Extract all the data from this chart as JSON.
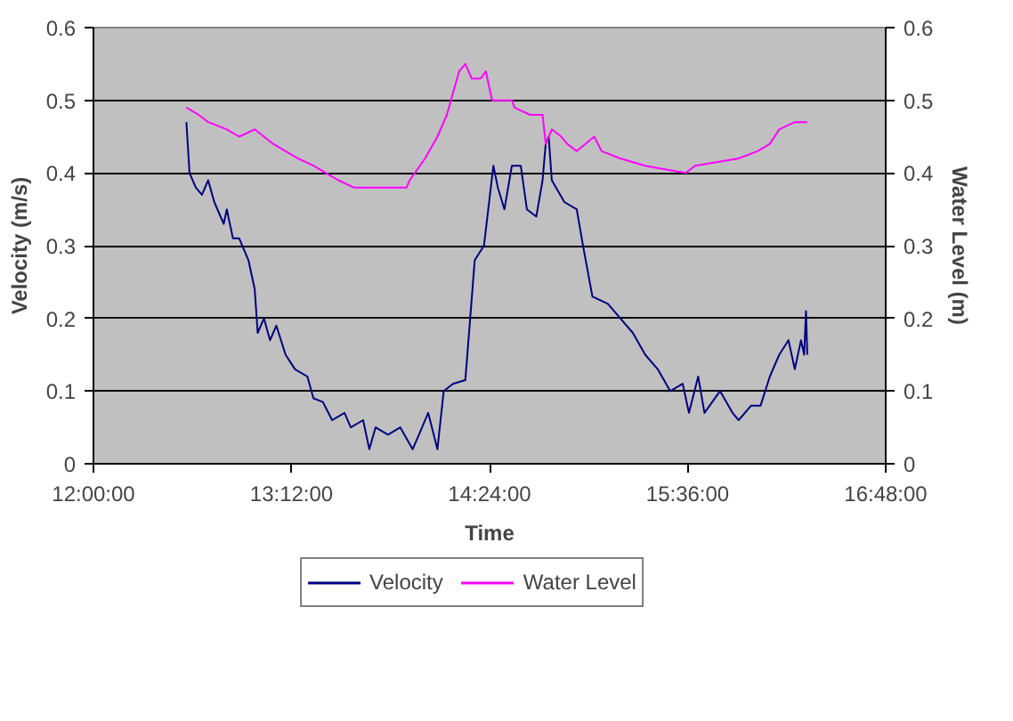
{
  "chart_data": {
    "type": "line",
    "xlabel": "Time",
    "ylabel": "Velocity (m/s)",
    "y2label": "Water Level (m)",
    "xlim": [
      12,
      16.8
    ],
    "xticks": [
      {
        "value": 12,
        "label": "12:00:00"
      },
      {
        "value": 13.2,
        "label": "13:12:00"
      },
      {
        "value": 14.4,
        "label": "14:24:00"
      },
      {
        "value": 15.6,
        "label": "15:36:00"
      },
      {
        "value": 16.8,
        "label": "16:48:00"
      }
    ],
    "ylim": [
      0,
      0.6
    ],
    "yticks": [
      0,
      0.1,
      0.2,
      0.3,
      0.4,
      0.5,
      0.6
    ],
    "y2lim": [
      0,
      0.6
    ],
    "y2ticks": [
      0,
      0.1,
      0.2,
      0.3,
      0.4,
      0.5,
      0.6
    ],
    "grid": "y",
    "legend": "bottom",
    "marker": "none",
    "line_style": "solid",
    "series": [
      {
        "name": "Velocity",
        "color": "#000080",
        "x": [
          12.563,
          12.582,
          12.62,
          12.657,
          12.695,
          12.732,
          12.789,
          12.808,
          12.845,
          12.883,
          12.939,
          12.977,
          12.995,
          13.033,
          13.07,
          13.108,
          13.164,
          13.221,
          13.296,
          13.333,
          13.39,
          13.446,
          13.521,
          13.559,
          13.634,
          13.671,
          13.709,
          13.784,
          13.859,
          13.934,
          13.972,
          14.028,
          14.084,
          14.122,
          14.178,
          14.253,
          14.31,
          14.366,
          14.423,
          14.45,
          14.49,
          14.535,
          14.589,
          14.626,
          14.683,
          14.721,
          14.74,
          14.758,
          14.777,
          14.853,
          14.928,
          14.966,
          15.023,
          15.117,
          15.192,
          15.268,
          15.343,
          15.419,
          15.494,
          15.57,
          15.608,
          15.664,
          15.702,
          15.796,
          15.872,
          15.909,
          15.985,
          16.042,
          16.098,
          16.155,
          16.211,
          16.249,
          16.287,
          16.306,
          16.317,
          16.325
        ],
        "values": [
          0.47,
          0.4,
          0.38,
          0.37,
          0.39,
          0.36,
          0.33,
          0.35,
          0.31,
          0.31,
          0.28,
          0.24,
          0.18,
          0.2,
          0.17,
          0.19,
          0.15,
          0.13,
          0.12,
          0.09,
          0.085,
          0.06,
          0.07,
          0.05,
          0.06,
          0.02,
          0.05,
          0.04,
          0.05,
          0.02,
          0.04,
          0.07,
          0.02,
          0.1,
          0.11,
          0.115,
          0.28,
          0.3,
          0.41,
          0.38,
          0.35,
          0.41,
          0.41,
          0.35,
          0.34,
          0.39,
          0.44,
          0.45,
          0.39,
          0.36,
          0.35,
          0.3,
          0.23,
          0.22,
          0.2,
          0.18,
          0.15,
          0.13,
          0.1,
          0.11,
          0.07,
          0.12,
          0.07,
          0.1,
          0.07,
          0.06,
          0.08,
          0.08,
          0.12,
          0.15,
          0.17,
          0.13,
          0.17,
          0.15,
          0.21,
          0.15
        ]
      },
      {
        "name": "Water Level",
        "color": "#ff00ff",
        "axis": "y2",
        "x": [
          12.563,
          12.638,
          12.695,
          12.808,
          12.883,
          12.977,
          13.033,
          13.089,
          13.164,
          13.239,
          13.333,
          13.408,
          13.484,
          13.577,
          13.746,
          13.897,
          13.916,
          14.009,
          14.084,
          14.141,
          14.178,
          14.216,
          14.253,
          14.291,
          14.347,
          14.377,
          14.415,
          14.535,
          14.551,
          14.645,
          14.721,
          14.74,
          14.777,
          14.834,
          14.87,
          14.928,
          15.034,
          15.079,
          15.192,
          15.343,
          15.589,
          15.645,
          15.909,
          16.023,
          16.098,
          16.155,
          16.249,
          16.325
        ],
        "values": [
          0.49,
          0.48,
          0.47,
          0.46,
          0.45,
          0.46,
          0.45,
          0.44,
          0.43,
          0.42,
          0.41,
          0.4,
          0.39,
          0.38,
          0.38,
          0.38,
          0.39,
          0.42,
          0.45,
          0.48,
          0.51,
          0.54,
          0.55,
          0.53,
          0.53,
          0.54,
          0.5,
          0.5,
          0.49,
          0.48,
          0.48,
          0.44,
          0.46,
          0.45,
          0.44,
          0.43,
          0.45,
          0.43,
          0.42,
          0.41,
          0.4,
          0.41,
          0.42,
          0.43,
          0.44,
          0.46,
          0.47,
          0.47
        ]
      }
    ]
  }
}
